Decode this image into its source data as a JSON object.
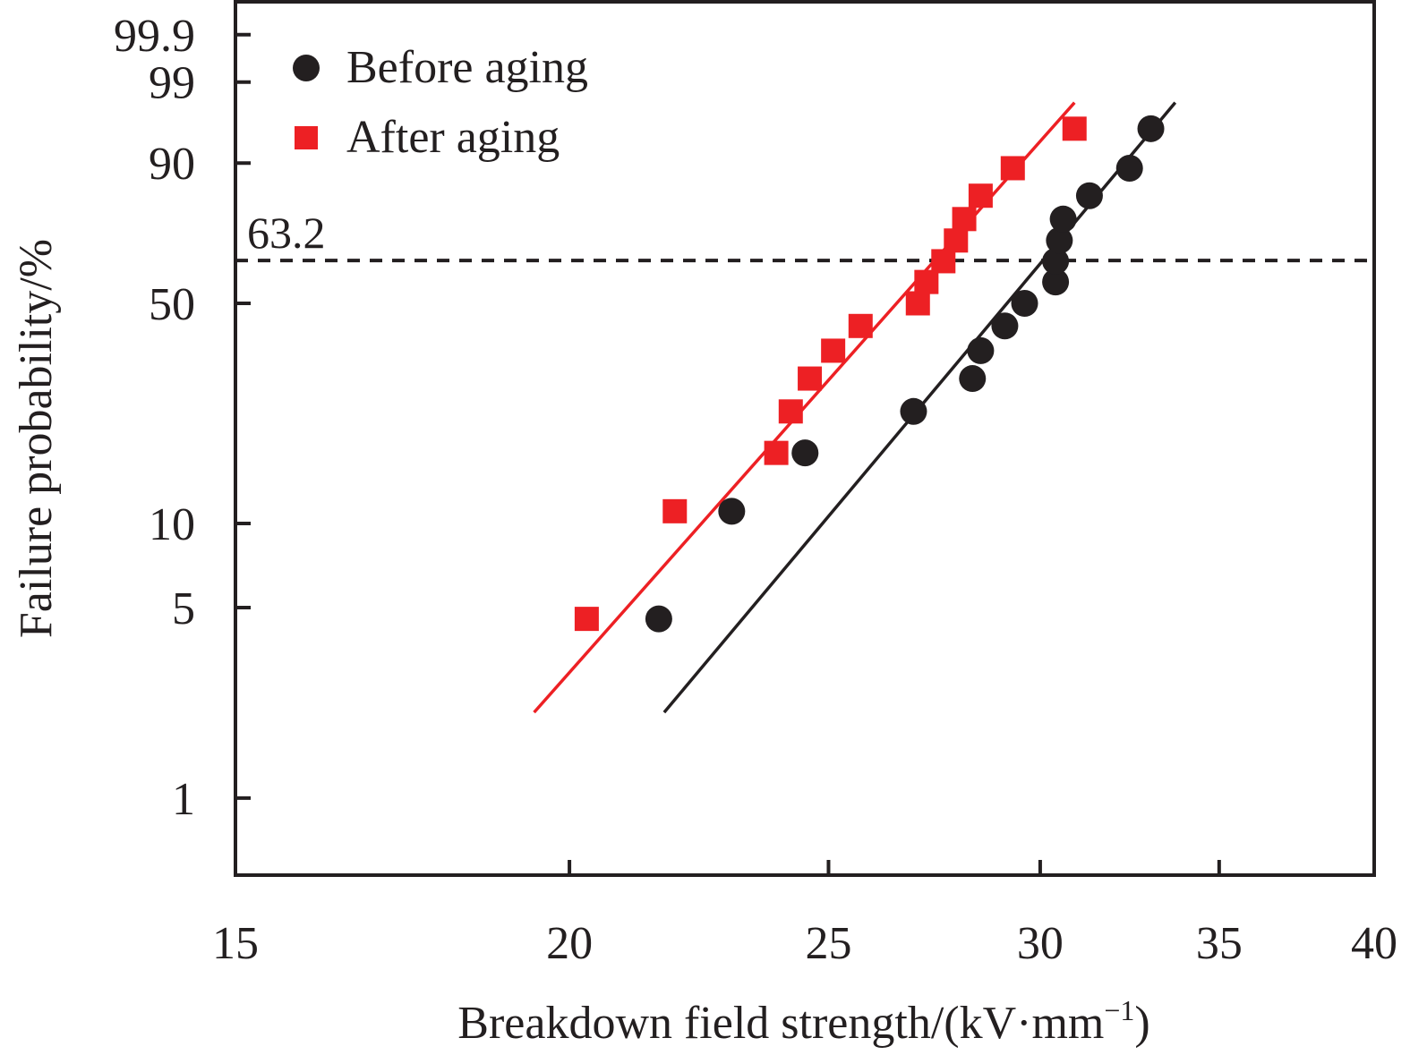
{
  "chart_data": {
    "type": "scatter",
    "subtype": "weibull-probability-plot",
    "title": "",
    "xlabel": "Breakdown field strength/(kV·mm",
    "xlabel_superscript": "−1",
    "xlabel_suffix": ")",
    "ylabel": "Failure probability/%",
    "x_scale": "log",
    "y_scale": "weibull",
    "xlim": [
      15,
      40
    ],
    "ylim": [
      0.53,
      99.99
    ],
    "x_ticks": [
      15,
      20,
      25,
      30,
      35,
      40
    ],
    "x_tick_labels": [
      "15",
      "20",
      "25",
      "30",
      "35",
      "40"
    ],
    "y_ticks": [
      1,
      5,
      10,
      50,
      90,
      99,
      99.9
    ],
    "y_tick_labels": [
      "1",
      "5",
      "10",
      "50",
      "90",
      "99",
      "99.9"
    ],
    "grid": false,
    "legend_position": "top-left",
    "reference_line": {
      "y": 63.2,
      "label": "63.2",
      "style": "dashed",
      "color": "#231f20"
    },
    "series": [
      {
        "name": "Before aging",
        "marker": "circle",
        "color": "#231f20",
        "x": [
          21.6,
          23.0,
          24.5,
          26.9,
          28.3,
          28.5,
          29.1,
          29.6,
          30.4,
          30.4,
          30.5,
          30.6,
          31.3,
          32.4,
          33.0
        ],
        "y": [
          4.55,
          11.04,
          17.53,
          24.03,
          30.52,
          37.01,
          43.51,
          50.0,
          56.49,
          62.99,
          69.48,
          75.97,
          82.47,
          88.96,
          95.45
        ],
        "fit_line": {
          "x": [
            21.7,
            33.7
          ],
          "y": [
            2.07,
            97.9
          ]
        }
      },
      {
        "name": "After aging",
        "marker": "square",
        "color": "#ed2024",
        "x": [
          20.3,
          21.9,
          23.9,
          24.2,
          24.6,
          25.1,
          25.7,
          27.0,
          27.2,
          27.6,
          27.9,
          28.1,
          28.5,
          29.3,
          30.9
        ],
        "y": [
          4.55,
          11.04,
          17.53,
          24.03,
          30.52,
          37.01,
          43.51,
          50.0,
          56.49,
          62.99,
          69.48,
          75.97,
          82.47,
          88.96,
          95.45
        ],
        "fit_line": {
          "x": [
            19.4,
            30.9
          ],
          "y": [
            2.07,
            97.9
          ]
        }
      }
    ]
  }
}
